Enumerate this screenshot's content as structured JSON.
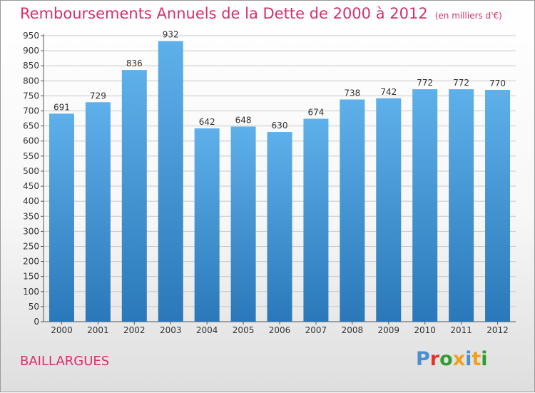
{
  "header": {
    "title": "Remboursements Annuels de la Dette de 2000 à 2012",
    "subtitle": "(en milliers d'€)"
  },
  "footer": {
    "town": "BAILLARGUES",
    "logo": "Proxiti"
  },
  "colors": {
    "title": "#d5306e",
    "bar_top": "#5eb0ea",
    "bar_bottom": "#2a78b9",
    "logo": [
      "#4a8fd0",
      "#e3342e",
      "#2e9f2e",
      "#f0a020",
      "#4a8fd0",
      "#f0a020",
      "#2e9f2e"
    ]
  },
  "chart_data": {
    "type": "bar",
    "categories": [
      "2000",
      "2001",
      "2002",
      "2003",
      "2004",
      "2005",
      "2006",
      "2007",
      "2008",
      "2009",
      "2010",
      "2011",
      "2012"
    ],
    "values": [
      691,
      729,
      836,
      932,
      642,
      648,
      630,
      674,
      738,
      742,
      772,
      772,
      770
    ],
    "ylim": [
      0,
      950
    ],
    "yticks": [
      0,
      50,
      100,
      150,
      200,
      250,
      300,
      350,
      400,
      450,
      500,
      550,
      600,
      650,
      700,
      750,
      800,
      850,
      900,
      950
    ],
    "grid": true,
    "xlabel": "",
    "ylabel": ""
  }
}
